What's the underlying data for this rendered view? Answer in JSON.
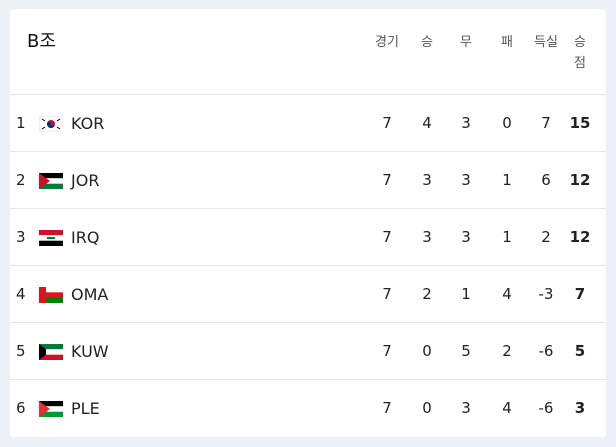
{
  "header": {
    "title": "B조"
  },
  "table": {
    "columns": [
      "경기",
      "승",
      "무",
      "패",
      "득실",
      "승점"
    ],
    "rows": [
      {
        "rank": 1,
        "team": "KOR",
        "values": [
          7,
          4,
          3,
          0,
          7,
          15
        ]
      },
      {
        "rank": 2,
        "team": "JOR",
        "values": [
          7,
          3,
          3,
          1,
          6,
          12
        ]
      },
      {
        "rank": 3,
        "team": "IRQ",
        "values": [
          7,
          3,
          3,
          1,
          2,
          12
        ]
      },
      {
        "rank": 4,
        "team": "OMA",
        "values": [
          7,
          2,
          1,
          4,
          -3,
          7
        ]
      },
      {
        "rank": 5,
        "team": "KUW",
        "values": [
          7,
          0,
          5,
          2,
          -6,
          5
        ]
      },
      {
        "rank": 6,
        "team": "PLE",
        "values": [
          7,
          0,
          3,
          4,
          -6,
          3
        ]
      }
    ]
  }
}
